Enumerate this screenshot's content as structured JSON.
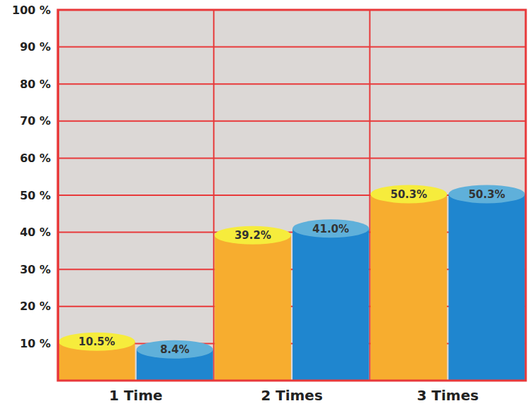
{
  "chart_data": {
    "type": "bar",
    "categories": [
      "1 Time",
      "2 Times",
      "3 Times"
    ],
    "series": [
      {
        "color": "#f7ad2f",
        "values": [
          10.5,
          39.2,
          50.3
        ],
        "value_labels": [
          "10.5%",
          "39.2%",
          "50.3%"
        ]
      },
      {
        "color": "#1f86cf",
        "values": [
          8.4,
          41.0,
          50.3
        ],
        "value_labels": [
          "8.4%",
          "41.0%",
          "50.3%"
        ]
      }
    ],
    "ylim": [
      0,
      100
    ],
    "yticks": [
      {
        "value": 10,
        "label": "10 %"
      },
      {
        "value": 20,
        "label": "20 %"
      },
      {
        "value": 30,
        "label": "30 %"
      },
      {
        "value": 40,
        "label": "40 %"
      },
      {
        "value": 50,
        "label": "50 %"
      },
      {
        "value": 60,
        "label": "60 %"
      },
      {
        "value": 70,
        "label": "70 %"
      },
      {
        "value": 80,
        "label": "80 %"
      },
      {
        "value": 90,
        "label": "90 %"
      },
      {
        "value": 100,
        "label": "100 %"
      }
    ],
    "grid": true,
    "data_labels": true
  }
}
